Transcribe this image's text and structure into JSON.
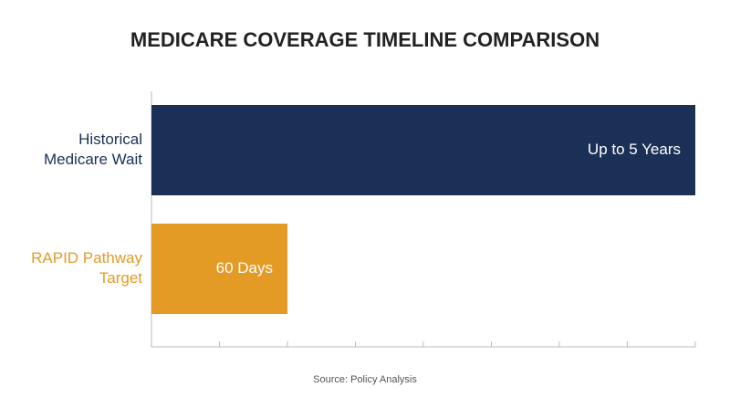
{
  "chart_data": {
    "type": "barh",
    "title": "MEDICARE COVERAGE TIMELINE COMPARISON",
    "categories": [
      [
        "Historical",
        "Medicare Wait"
      ],
      [
        "RAPID Pathway",
        "Target"
      ]
    ],
    "values": [
      8,
      2
    ],
    "bar_texts": [
      "Up to 5 Years",
      "60 Days"
    ],
    "colors": [
      "#1b3057",
      "#e39b26"
    ],
    "xlim": [
      0,
      8
    ],
    "xticks": [
      0,
      1,
      2,
      3,
      4,
      5,
      6,
      7,
      8
    ],
    "source": "Source: Policy Analysis"
  }
}
